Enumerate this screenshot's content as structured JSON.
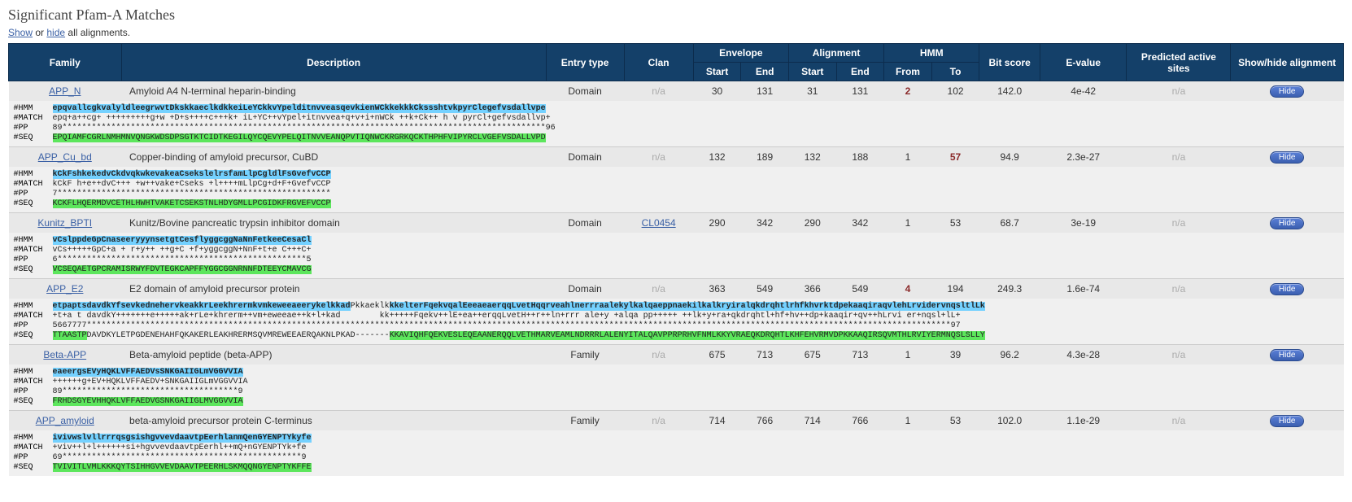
{
  "title": "Significant Pfam-A Matches",
  "controls": {
    "show": "Show",
    "or": " or ",
    "hide": "hide",
    "rest": " all alignments."
  },
  "header": {
    "family": "Family",
    "description": "Description",
    "entry_type": "Entry type",
    "clan": "Clan",
    "envelope": "Envelope",
    "alignment": "Alignment",
    "hmm": "HMM",
    "start": "Start",
    "end": "End",
    "from": "From",
    "to": "To",
    "bit_score": "Bit score",
    "evalue": "E-value",
    "predicted": "Predicted active sites",
    "showhide": "Show/hide alignment"
  },
  "hide_label": "Hide",
  "na": "n/a",
  "aln_labels": {
    "hmm": "#HMM",
    "match": "#MATCH",
    "pp": "#PP",
    "seq": "#SEQ"
  },
  "rows": [
    {
      "family": "APP_N",
      "desc": "Amyloid A4 N-terminal heparin-binding",
      "entry_type": "Domain",
      "clan": null,
      "env_start": "30",
      "env_end": "131",
      "aln_start": "31",
      "aln_end": "131",
      "hmm_from": "2",
      "hmm_from_bold": true,
      "hmm_to": "102",
      "bit": "142.0",
      "evalue": "4e-42",
      "pred": null,
      "aln": {
        "hmm": "epqvallcgkvalyldleegrwvtDkskkaeclkdkkeiLeYCkkvYpelditnvveasqevkienWCkkekkkCkssshtvkpyrClegefvsdallvpe",
        "match": "epq+a++cg+ +++++++++g+w +D+s++++c+++k+ iL+YC++vYpel+itnvvea+q+v+i+nWCk ++k+Ck++ h v pyrCl+gefvsdallvp+",
        "pp": "89***************************************************************************************************96",
        "seq": "EPQIAMFCGRLNMHMNVQNGKWDSDPSGTKTCIDTKEGILQYCQEVYPELQITNVVEANQPVTIQNWCKRGRKQCKTHPHFVIPYRCLVGEFVSDALLVPD"
      }
    },
    {
      "family": "APP_Cu_bd",
      "desc": "Copper-binding of amyloid precursor, CuBD",
      "entry_type": "Domain",
      "clan": null,
      "env_start": "132",
      "env_end": "189",
      "aln_start": "132",
      "aln_end": "188",
      "hmm_from": "1",
      "hmm_to": "57",
      "hmm_to_bold": true,
      "bit": "94.9",
      "evalue": "2.3e-27",
      "pred": null,
      "aln": {
        "hmm": "kCkFshkekedvCkdvqkwkevakeaCsekslelrsfamLlpCgldlFsGvefvCCP",
        "match": "kCkF h+e++dvC+++ +w++vake+Cseks +l++++mLlpCg+d+F+GvefvCCP",
        "pp": "7********************************************************",
        "seq": "KCKFLHQERMDVCETHLHWHTVAKETCSEKSTNLHDYGMLLPCGIDKFRGVEFVCCP"
      }
    },
    {
      "family": "Kunitz_BPTI",
      "desc": "Kunitz/Bovine pancreatic trypsin inhibitor domain",
      "entry_type": "Domain",
      "clan": "CL0454",
      "env_start": "290",
      "env_end": "342",
      "aln_start": "290",
      "aln_end": "342",
      "hmm_from": "1",
      "hmm_to": "53",
      "bit": "68.7",
      "evalue": "3e-19",
      "pred": null,
      "aln": {
        "hmm": "vCslppdeGpCnaseeryyynsetgtCesflyggcggNaNnFetkeeCesaCl",
        "match": "vCs+++++GpC+a + r+y++ ++g+C +f+yggcggN+NnF+t+e C+++C+",
        "pp": "6***************************************************5",
        "seq": "VCSEQAETGPCRAMISRWYFDVTEGKCAPFFYGGCGGNRNNFDTEEYCMAVCG"
      }
    },
    {
      "family": "APP_E2",
      "desc": "E2 domain of amyloid precursor protein",
      "entry_type": "Domain",
      "clan": null,
      "env_start": "363",
      "env_end": "549",
      "aln_start": "366",
      "aln_end": "549",
      "hmm_from": "4",
      "hmm_from_bold": true,
      "hmm_to": "194",
      "bit": "249.3",
      "evalue": "1.6e-74",
      "pred": null,
      "aln": {
        "hmm_p1": "etpaptsdavdkYfsevkednehervkeakkrLeekhrermkvmkeweeaeerykelkkad",
        "hmm_p2": "Pkkaeklk",
        "hmm_p3": "kkelterFqekvqalEeeaeaerqqLvetHqqrveahlnerrraalekylkalqaeppnaekilkalkryiralqkdrqhtlrhfkhvrktdpekaaqiraqvlehLrvidervnqsltlLk",
        "match": "+t+a t davdkY+++++++e+++++ak+rLe+khrerm++vm+eweeae++k+l+kad        kk+++++Fqekv++lE+ea++erqqLvetH++r++ln+rrr ale+y +alqa pp+++++ ++lk+y+ra+qkdrqhtl+hf+hv++dp+kaaqir+qv++hLrvi er+nqsl+lL+",
        "pp": "5667777*********************************************************************************************************************************************************************************97",
        "seq_p1": "TTAASTP",
        "seq_p2": "DAVDKYLETPGDENEHAHFQKAKERLEAKHRERMSQVMREWEEAERQAKNLPKAD-------",
        "seq_p3": "KKAVIQHFQEKVESLEQEAANERQQLVETHMARVEAMLNDRRRLALENYITALQAVPPRPRHVFNMLKKYVRAEQKDRQHTLKHFEHVRMVDPKKAAQIRSQVMTHLRVIYERMNQSLSLLY"
      }
    },
    {
      "family": "Beta-APP",
      "desc": "Beta-amyloid peptide (beta-APP)",
      "entry_type": "Family",
      "clan": null,
      "env_start": "675",
      "env_end": "713",
      "aln_start": "675",
      "aln_end": "713",
      "hmm_from": "1",
      "hmm_to": "39",
      "bit": "96.2",
      "evalue": "4.3e-28",
      "pred": null,
      "aln": {
        "hmm": "eaeergsEVyHQKLVFFAEDVsSNKGAIIGLmVGGVVIA",
        "match": "++++++g+EV+HQKLVFFAEDV+SNKGAIIGLmVGGVVIA",
        "pp": "89************************************9",
        "seq": "FRHDSGYEVHHQKLVFFAEDVGSNKGAIIGLMVGGVVIA"
      }
    },
    {
      "family": "APP_amyloid",
      "desc": "beta-amyloid precursor protein C-terminus",
      "entry_type": "Family",
      "clan": null,
      "env_start": "714",
      "env_end": "766",
      "aln_start": "714",
      "aln_end": "766",
      "hmm_from": "1",
      "hmm_to": "53",
      "bit": "102.0",
      "evalue": "1.1e-29",
      "pred": null,
      "aln": {
        "hmm": "ivivwslvllrrrqsgsishgvvevdaavtpEerhlanmQenGYENPTYkyfe",
        "match": "+viv++l+l++++++si+hgvvevdaavtpEerhl++mQ+nGYENPTYk+fe",
        "pp": "69*************************************************9",
        "seq": "TVIVITLVMLKKKQYTSIHHGVVEVDAAVTPEERHLSKMQQNGYENPTYKFFE"
      }
    }
  ]
}
